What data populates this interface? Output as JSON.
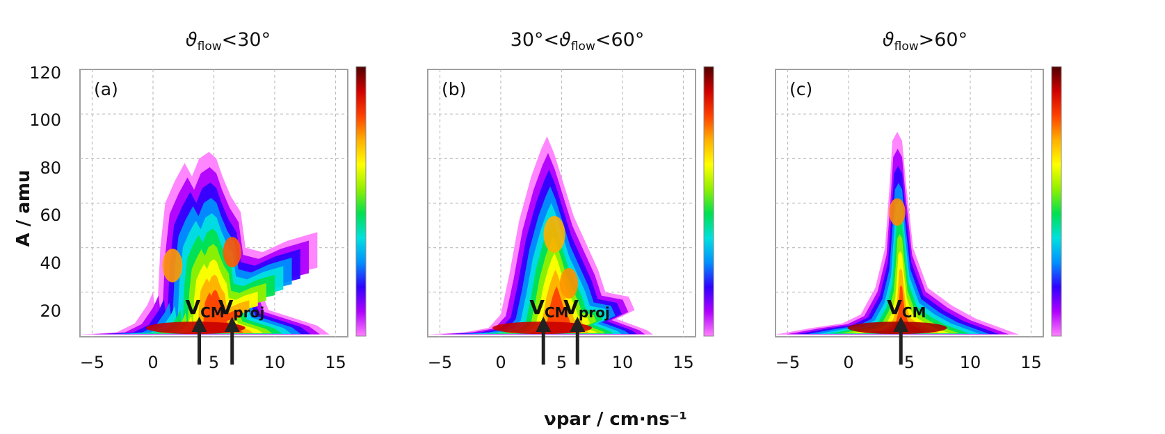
{
  "chart_data": {
    "type": "heatmap",
    "shared": {
      "xlabel": "νpar / cm·ns⁻¹",
      "ylabel": "A / amu",
      "x_ticks": [
        -5,
        0,
        5,
        10,
        15
      ],
      "x_tick_labels": [
        "−5",
        "0",
        "5",
        "10",
        "15"
      ],
      "y_ticks": [
        20,
        40,
        60,
        80,
        100,
        120
      ],
      "y_tick_labels": [
        "20",
        "40",
        "60",
        "80",
        "100",
        "120"
      ],
      "xlim": [
        -6,
        16
      ],
      "ylim": [
        0,
        120
      ],
      "grid": true,
      "colorscale": [
        "#ff80ff",
        "#b000ff",
        "#3000ff",
        "#0090ff",
        "#00e0e0",
        "#00e050",
        "#90f000",
        "#ffff00",
        "#ffb000",
        "#ff4000",
        "#d00000",
        "#500000"
      ]
    },
    "panels": [
      {
        "id": "a",
        "label": "(a)",
        "title_sym": "ϑ",
        "title_sub": "flow",
        "title_pre": "",
        "title_post": "<30°",
        "outline": [
          [
            -6,
            1
          ],
          [
            -3,
            2
          ],
          [
            -1.5,
            6
          ],
          [
            -0.5,
            14
          ],
          [
            0,
            20
          ],
          [
            0.3,
            6
          ],
          [
            0.6,
            40
          ],
          [
            1,
            60
          ],
          [
            1.8,
            70
          ],
          [
            2.6,
            78
          ],
          [
            3.2,
            72
          ],
          [
            3.8,
            80
          ],
          [
            4.6,
            83
          ],
          [
            5.2,
            80
          ],
          [
            5.7,
            72
          ],
          [
            6.4,
            63
          ],
          [
            7.2,
            56
          ],
          [
            7.6,
            40
          ],
          [
            9,
            38
          ],
          [
            11,
            43
          ],
          [
            13.5,
            47
          ],
          [
            13.5,
            31
          ],
          [
            10.5,
            27
          ],
          [
            8.6,
            24
          ],
          [
            9.5,
            12
          ],
          [
            13.5,
            5
          ],
          [
            14.5,
            1
          ]
        ],
        "hot_spots": [
          {
            "x": 1.6,
            "y": 32,
            "size": 11,
            "color": "#ff9a00"
          },
          {
            "x": 6.5,
            "y": 38,
            "size": 10,
            "color": "#ff5a00"
          },
          {
            "x": 3.5,
            "y": 4,
            "size": 13,
            "color": "#c80000"
          }
        ],
        "arrows": [
          {
            "x": 3.8,
            "label": "V",
            "sub": "CM"
          },
          {
            "x": 6.5,
            "label": "V",
            "sub": "proj"
          }
        ]
      },
      {
        "id": "b",
        "label": "(b)",
        "title_sym": "ϑ",
        "title_sub": "flow",
        "title_pre": "30°<",
        "title_post": "<60°",
        "outline": [
          [
            -6,
            1
          ],
          [
            -3,
            2
          ],
          [
            -1,
            4
          ],
          [
            0,
            10
          ],
          [
            0.7,
            28
          ],
          [
            1.5,
            52
          ],
          [
            2.5,
            72
          ],
          [
            3.3,
            84
          ],
          [
            3.8,
            90
          ],
          [
            4.4,
            82
          ],
          [
            5.2,
            68
          ],
          [
            6,
            54
          ],
          [
            7,
            42
          ],
          [
            8,
            30
          ],
          [
            8.6,
            20
          ],
          [
            10.5,
            18
          ],
          [
            11,
            12
          ],
          [
            9.5,
            8
          ],
          [
            12,
            3
          ],
          [
            12.5,
            1
          ]
        ],
        "hot_spots": [
          {
            "x": 4.4,
            "y": 46,
            "size": 12,
            "color": "#ffb000"
          },
          {
            "x": 5.6,
            "y": 24,
            "size": 10,
            "color": "#ff9000"
          },
          {
            "x": 3.4,
            "y": 4,
            "size": 13,
            "color": "#c80000"
          }
        ],
        "arrows": [
          {
            "x": 3.5,
            "label": "V",
            "sub": "CM"
          },
          {
            "x": 6.3,
            "label": "V",
            "sub": "proj"
          }
        ]
      },
      {
        "id": "c",
        "label": "(c)",
        "title_sym": "ϑ",
        "title_sub": "flow",
        "title_pre": "",
        "title_post": ">60°",
        "outline": [
          [
            -6,
            1
          ],
          [
            -3,
            4
          ],
          [
            -0.5,
            6
          ],
          [
            1,
            10
          ],
          [
            2.2,
            22
          ],
          [
            3,
            40
          ],
          [
            3.4,
            70
          ],
          [
            3.6,
            88
          ],
          [
            4,
            92
          ],
          [
            4.4,
            88
          ],
          [
            4.7,
            70
          ],
          [
            5.3,
            40
          ],
          [
            6.5,
            22
          ],
          [
            8.5,
            14
          ],
          [
            10.5,
            8
          ],
          [
            13.5,
            2
          ],
          [
            14,
            1
          ]
        ],
        "hot_spots": [
          {
            "x": 4,
            "y": 56,
            "size": 9,
            "color": "#ff8a00"
          },
          {
            "x": 4,
            "y": 4,
            "size": 13,
            "color": "#a80000"
          }
        ],
        "arrows": [
          {
            "x": 4.3,
            "label": "V",
            "sub": "CM"
          }
        ]
      }
    ]
  }
}
